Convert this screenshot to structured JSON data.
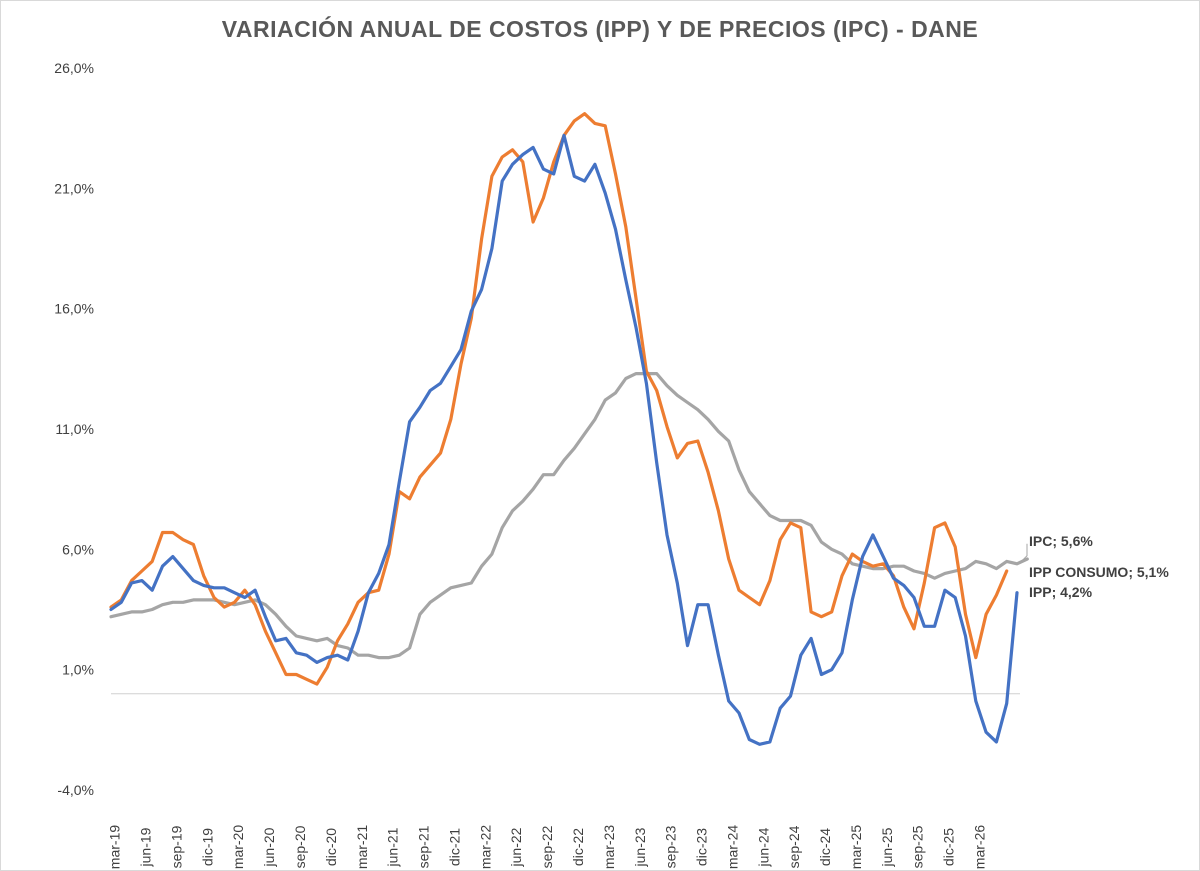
{
  "chart_data": {
    "type": "line",
    "title": "VARIACIÓN ANUAL DE COSTOS (IPP) Y DE PRECIOS (IPC) - DANE",
    "xlabel": "",
    "ylabel": "",
    "ylim": [
      -4.0,
      26.0
    ],
    "yticks": [
      -4.0,
      1.0,
      6.0,
      11.0,
      16.0,
      21.0,
      26.0
    ],
    "ytick_labels": [
      "-4,0%",
      "1,0%",
      "6,0%",
      "11,0%",
      "16,0%",
      "21,0%",
      "26,0%"
    ],
    "x_start": "mar-19",
    "x_end": "mar-26",
    "tick_labels": [
      "mar-19",
      "jun-19",
      "sep-19",
      "dic-19",
      "mar-20",
      "jun-20",
      "sep-20",
      "dic-20",
      "mar-21",
      "jun-21",
      "sep-21",
      "dic-21",
      "mar-22",
      "jun-22",
      "sep-22",
      "dic-22",
      "mar-23",
      "jun-23",
      "sep-23",
      "dic-23",
      "mar-24",
      "jun-24",
      "sep-24",
      "dic-24",
      "mar-25",
      "jun-25",
      "sep-25",
      "dic-25",
      "mar-26"
    ],
    "zero_line": true,
    "legend": "end-labels",
    "series": [
      {
        "name": "IPP",
        "color": "#4472c4",
        "end_label": "IPP; 4,2%",
        "values": [
          3.5,
          3.8,
          4.6,
          4.7,
          4.3,
          5.3,
          5.7,
          5.2,
          4.7,
          4.5,
          4.4,
          4.4,
          4.2,
          4.0,
          4.3,
          3.2,
          2.2,
          2.3,
          1.7,
          1.6,
          1.3,
          1.5,
          1.6,
          1.4,
          2.6,
          4.2,
          5.0,
          6.2,
          8.8,
          11.3,
          11.9,
          12.6,
          12.9,
          13.6,
          14.3,
          15.9,
          16.8,
          18.5,
          21.3,
          22.0,
          22.4,
          22.7,
          21.8,
          21.6,
          23.2,
          21.5,
          21.3,
          22.0,
          20.8,
          19.3,
          17.2,
          15.2,
          12.9,
          9.6,
          6.6,
          4.6,
          2.0,
          3.7,
          3.7,
          1.6,
          -0.3,
          -0.8,
          -1.9,
          -2.1,
          -2.0,
          -0.6,
          -0.1,
          1.6,
          2.3,
          0.8,
          1.0,
          1.7,
          3.9,
          5.7,
          6.6,
          5.7,
          4.8,
          4.5,
          4.0,
          2.8,
          2.8,
          4.3,
          4.0,
          2.4,
          -0.3,
          -1.6,
          -2.0,
          -0.4,
          4.2
        ]
      },
      {
        "name": "IPP CONSUMO",
        "color": "#ed7d31",
        "end_label": "IPP CONSUMO; 5,1%",
        "values": [
          3.6,
          3.9,
          4.7,
          5.1,
          5.5,
          6.7,
          6.7,
          6.4,
          6.2,
          4.9,
          4.0,
          3.6,
          3.8,
          4.3,
          3.7,
          2.6,
          1.7,
          0.8,
          0.8,
          0.6,
          0.4,
          1.1,
          2.2,
          2.9,
          3.8,
          4.2,
          4.3,
          5.8,
          8.4,
          8.1,
          9.0,
          9.5,
          10.0,
          11.4,
          13.7,
          15.6,
          18.9,
          21.5,
          22.3,
          22.6,
          22.1,
          19.6,
          20.6,
          22.1,
          23.2,
          23.8,
          24.1,
          23.7,
          23.6,
          21.6,
          19.4,
          16.4,
          13.4,
          12.6,
          11.1,
          9.8,
          10.4,
          10.5,
          9.2,
          7.6,
          5.6,
          4.3,
          4.0,
          3.7,
          4.7,
          6.4,
          7.1,
          6.9,
          3.4,
          3.2,
          3.4,
          4.9,
          5.8,
          5.5,
          5.3,
          5.4,
          4.9,
          3.6,
          2.7,
          4.6,
          6.9,
          7.1,
          6.1,
          3.3,
          1.5,
          3.3,
          4.1,
          5.1
        ]
      },
      {
        "name": "IPC",
        "color": "#a5a5a5",
        "end_label": "IPC; 5,6%",
        "values": [
          3.2,
          3.3,
          3.4,
          3.4,
          3.5,
          3.7,
          3.8,
          3.8,
          3.9,
          3.9,
          3.9,
          3.8,
          3.7,
          3.8,
          3.9,
          3.7,
          3.3,
          2.8,
          2.4,
          2.3,
          2.2,
          2.3,
          2.0,
          1.9,
          1.6,
          1.6,
          1.5,
          1.5,
          1.6,
          1.9,
          3.3,
          3.8,
          4.1,
          4.4,
          4.5,
          4.6,
          5.3,
          5.8,
          6.9,
          7.6,
          8.0,
          8.5,
          9.1,
          9.1,
          9.7,
          10.2,
          10.8,
          11.4,
          12.2,
          12.5,
          13.1,
          13.3,
          13.3,
          13.3,
          12.8,
          12.4,
          12.1,
          11.8,
          11.4,
          10.9,
          10.5,
          9.3,
          8.4,
          7.9,
          7.4,
          7.2,
          7.2,
          7.2,
          7.0,
          6.3,
          6.0,
          5.8,
          5.4,
          5.3,
          5.2,
          5.2,
          5.3,
          5.3,
          5.1,
          5.0,
          4.8,
          5.0,
          5.1,
          5.2,
          5.5,
          5.4,
          5.2,
          5.5,
          5.4,
          5.6
        ]
      }
    ]
  }
}
